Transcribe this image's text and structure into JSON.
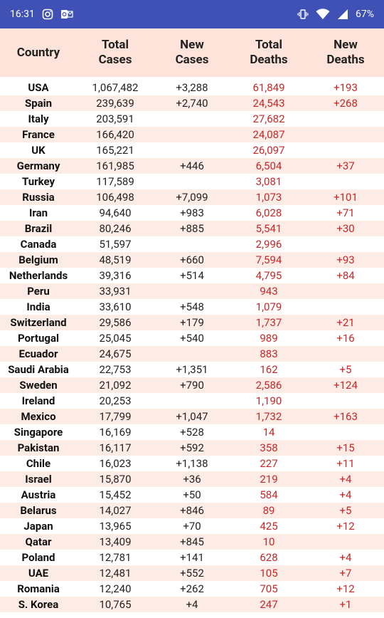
{
  "status": {
    "time": "16:31",
    "battery": "67%",
    "icons": [
      "instagram-icon",
      "outlook-icon",
      "vibrate-icon",
      "wifi-icon",
      "signal-icon",
      "battery-icon"
    ]
  },
  "table": {
    "headers": {
      "country": "Country",
      "total_cases": "Total\nCases",
      "new_cases": "New\nCases",
      "total_deaths": "Total\nDeaths",
      "new_deaths": "New\nDeaths"
    },
    "rows": [
      {
        "country": "USA",
        "total_cases": "1,067,482",
        "new_cases": "+3,288",
        "total_deaths": "61,849",
        "new_deaths": "+193"
      },
      {
        "country": "Spain",
        "total_cases": "239,639",
        "new_cases": "+2,740",
        "total_deaths": "24,543",
        "new_deaths": "+268"
      },
      {
        "country": "Italy",
        "total_cases": "203,591",
        "new_cases": "",
        "total_deaths": "27,682",
        "new_deaths": ""
      },
      {
        "country": "France",
        "total_cases": "166,420",
        "new_cases": "",
        "total_deaths": "24,087",
        "new_deaths": ""
      },
      {
        "country": "UK",
        "total_cases": "165,221",
        "new_cases": "",
        "total_deaths": "26,097",
        "new_deaths": ""
      },
      {
        "country": "Germany",
        "total_cases": "161,985",
        "new_cases": "+446",
        "total_deaths": "6,504",
        "new_deaths": "+37"
      },
      {
        "country": "Turkey",
        "total_cases": "117,589",
        "new_cases": "",
        "total_deaths": "3,081",
        "new_deaths": ""
      },
      {
        "country": "Russia",
        "total_cases": "106,498",
        "new_cases": "+7,099",
        "total_deaths": "1,073",
        "new_deaths": "+101"
      },
      {
        "country": "Iran",
        "total_cases": "94,640",
        "new_cases": "+983",
        "total_deaths": "6,028",
        "new_deaths": "+71"
      },
      {
        "country": "Brazil",
        "total_cases": "80,246",
        "new_cases": "+885",
        "total_deaths": "5,541",
        "new_deaths": "+30"
      },
      {
        "country": "Canada",
        "total_cases": "51,597",
        "new_cases": "",
        "total_deaths": "2,996",
        "new_deaths": ""
      },
      {
        "country": "Belgium",
        "total_cases": "48,519",
        "new_cases": "+660",
        "total_deaths": "7,594",
        "new_deaths": "+93"
      },
      {
        "country": "Netherlands",
        "total_cases": "39,316",
        "new_cases": "+514",
        "total_deaths": "4,795",
        "new_deaths": "+84"
      },
      {
        "country": "Peru",
        "total_cases": "33,931",
        "new_cases": "",
        "total_deaths": "943",
        "new_deaths": ""
      },
      {
        "country": "India",
        "total_cases": "33,610",
        "new_cases": "+548",
        "total_deaths": "1,079",
        "new_deaths": ""
      },
      {
        "country": "Switzerland",
        "total_cases": "29,586",
        "new_cases": "+179",
        "total_deaths": "1,737",
        "new_deaths": "+21"
      },
      {
        "country": "Portugal",
        "total_cases": "25,045",
        "new_cases": "+540",
        "total_deaths": "989",
        "new_deaths": "+16"
      },
      {
        "country": "Ecuador",
        "total_cases": "24,675",
        "new_cases": "",
        "total_deaths": "883",
        "new_deaths": ""
      },
      {
        "country": "Saudi Arabia",
        "total_cases": "22,753",
        "new_cases": "+1,351",
        "total_deaths": "162",
        "new_deaths": "+5"
      },
      {
        "country": "Sweden",
        "total_cases": "21,092",
        "new_cases": "+790",
        "total_deaths": "2,586",
        "new_deaths": "+124"
      },
      {
        "country": "Ireland",
        "total_cases": "20,253",
        "new_cases": "",
        "total_deaths": "1,190",
        "new_deaths": ""
      },
      {
        "country": "Mexico",
        "total_cases": "17,799",
        "new_cases": "+1,047",
        "total_deaths": "1,732",
        "new_deaths": "+163"
      },
      {
        "country": "Singapore",
        "total_cases": "16,169",
        "new_cases": "+528",
        "total_deaths": "14",
        "new_deaths": ""
      },
      {
        "country": "Pakistan",
        "total_cases": "16,117",
        "new_cases": "+592",
        "total_deaths": "358",
        "new_deaths": "+15"
      },
      {
        "country": "Chile",
        "total_cases": "16,023",
        "new_cases": "+1,138",
        "total_deaths": "227",
        "new_deaths": "+11"
      },
      {
        "country": "Israel",
        "total_cases": "15,870",
        "new_cases": "+36",
        "total_deaths": "219",
        "new_deaths": "+4"
      },
      {
        "country": "Austria",
        "total_cases": "15,452",
        "new_cases": "+50",
        "total_deaths": "584",
        "new_deaths": "+4"
      },
      {
        "country": "Belarus",
        "total_cases": "14,027",
        "new_cases": "+846",
        "total_deaths": "89",
        "new_deaths": "+5"
      },
      {
        "country": "Japan",
        "total_cases": "13,965",
        "new_cases": "+70",
        "total_deaths": "425",
        "new_deaths": "+12"
      },
      {
        "country": "Qatar",
        "total_cases": "13,409",
        "new_cases": "+845",
        "total_deaths": "10",
        "new_deaths": ""
      },
      {
        "country": "Poland",
        "total_cases": "12,781",
        "new_cases": "+141",
        "total_deaths": "628",
        "new_deaths": "+4"
      },
      {
        "country": "UAE",
        "total_cases": "12,481",
        "new_cases": "+552",
        "total_deaths": "105",
        "new_deaths": "+7"
      },
      {
        "country": "Romania",
        "total_cases": "12,240",
        "new_cases": "+262",
        "total_deaths": "705",
        "new_deaths": "+12"
      },
      {
        "country": "S. Korea",
        "total_cases": "10,765",
        "new_cases": "+4",
        "total_deaths": "247",
        "new_deaths": "+1"
      }
    ]
  },
  "colors": {
    "header_bg": "#fde3d9",
    "row_alt_bg": "#fdece6",
    "death_text": "#c62828",
    "status_bg": "#3f51b5"
  }
}
